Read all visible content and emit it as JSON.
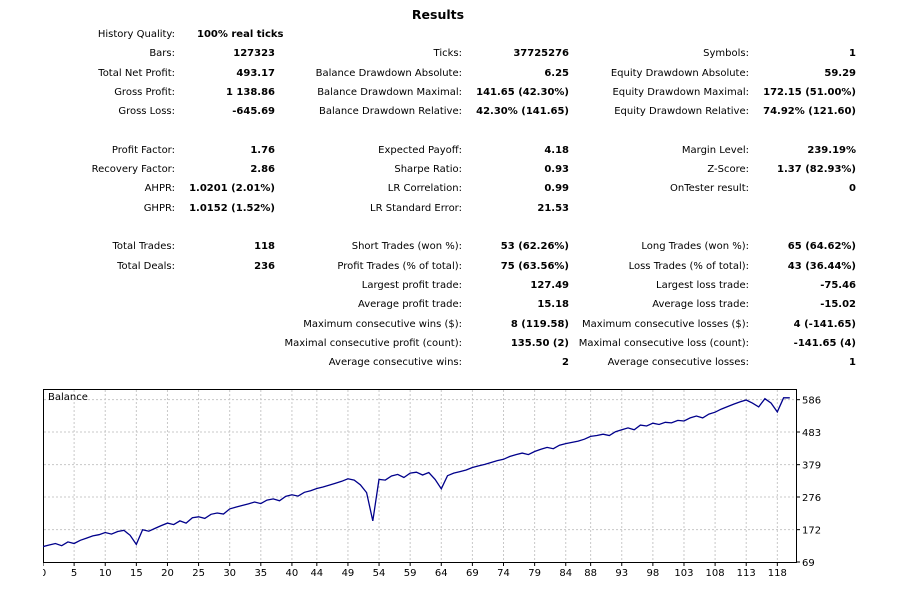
{
  "header": {
    "title": "Results"
  },
  "history_quality": {
    "label": "History Quality:",
    "value": "100% real ticks"
  },
  "rows": [
    {
      "y": 1,
      "c1": {
        "label": "Bars:",
        "value": "127323"
      },
      "c2": {
        "label": "Ticks:",
        "value": "37725276"
      },
      "c3": {
        "label": "Symbols:",
        "value": "1"
      }
    },
    {
      "y": 2,
      "c1": {
        "label": "Total Net Profit:",
        "value": "493.17"
      },
      "c2": {
        "label": "Balance Drawdown Absolute:",
        "value": "6.25"
      },
      "c3": {
        "label": "Equity Drawdown Absolute:",
        "value": "59.29"
      }
    },
    {
      "y": 3,
      "c1": {
        "label": "Gross Profit:",
        "value": "1 138.86"
      },
      "c2": {
        "label": "Balance Drawdown Maximal:",
        "value": "141.65 (42.30%)"
      },
      "c3": {
        "label": "Equity Drawdown Maximal:",
        "value": "172.15 (51.00%)"
      }
    },
    {
      "y": 4,
      "c1": {
        "label": "Gross Loss:",
        "value": "-645.69"
      },
      "c2": {
        "label": "Balance Drawdown Relative:",
        "value": "42.30% (141.65)"
      },
      "c3": {
        "label": "Equity Drawdown Relative:",
        "value": "74.92% (121.60)"
      }
    },
    {
      "y": 6,
      "c1": {
        "label": "Profit Factor:",
        "value": "1.76"
      },
      "c2": {
        "label": "Expected Payoff:",
        "value": "4.18"
      },
      "c3": {
        "label": "Margin Level:",
        "value": "239.19%"
      }
    },
    {
      "y": 7,
      "c1": {
        "label": "Recovery Factor:",
        "value": "2.86"
      },
      "c2": {
        "label": "Sharpe Ratio:",
        "value": "0.93"
      },
      "c3": {
        "label": "Z-Score:",
        "value": "1.37 (82.93%)"
      }
    },
    {
      "y": 8,
      "c1": {
        "label": "AHPR:",
        "value": "1.0201 (2.01%)"
      },
      "c2": {
        "label": "LR Correlation:",
        "value": "0.99"
      },
      "c3": {
        "label": "OnTester result:",
        "value": "0"
      }
    },
    {
      "y": 9,
      "c1": {
        "label": "GHPR:",
        "value": "1.0152 (1.52%)"
      },
      "c2": {
        "label": "LR Standard Error:",
        "value": "21.53"
      },
      "c3": {
        "label": "",
        "value": ""
      }
    },
    {
      "y": 11,
      "c1": {
        "label": "Total Trades:",
        "value": "118"
      },
      "c2": {
        "label": "Short Trades (won %):",
        "value": "53 (62.26%)"
      },
      "c3": {
        "label": "Long Trades (won %):",
        "value": "65 (64.62%)"
      }
    },
    {
      "y": 12,
      "c1": {
        "label": "Total Deals:",
        "value": "236"
      },
      "c2": {
        "label": "Profit Trades (% of total):",
        "value": "75 (63.56%)"
      },
      "c3": {
        "label": "Loss Trades (% of total):",
        "value": "43 (36.44%)"
      }
    },
    {
      "y": 13,
      "c1": {
        "label": "",
        "value": ""
      },
      "c2": {
        "label": "Largest profit trade:",
        "value": "127.49"
      },
      "c3": {
        "label": "Largest loss trade:",
        "value": "-75.46"
      }
    },
    {
      "y": 14,
      "c1": {
        "label": "",
        "value": ""
      },
      "c2": {
        "label": "Average profit trade:",
        "value": "15.18"
      },
      "c3": {
        "label": "Average loss trade:",
        "value": "-15.02"
      }
    },
    {
      "y": 15,
      "c1": {
        "label": "",
        "value": ""
      },
      "c2": {
        "label": "Maximum consecutive wins ($):",
        "value": "8 (119.58)"
      },
      "c3": {
        "label": "Maximum consecutive losses ($):",
        "value": "4 (-141.65)"
      }
    },
    {
      "y": 16,
      "c1": {
        "label": "",
        "value": ""
      },
      "c2": {
        "label": "Maximal consecutive profit (count):",
        "value": "135.50 (2)"
      },
      "c3": {
        "label": "Maximal consecutive loss (count):",
        "value": "-141.65 (4)"
      }
    },
    {
      "y": 17,
      "c1": {
        "label": "",
        "value": ""
      },
      "c2": {
        "label": "Average consecutive wins:",
        "value": "2"
      },
      "c3": {
        "label": "Average consecutive losses:",
        "value": "1"
      }
    }
  ],
  "chart_data": {
    "type": "line",
    "title": "Balance",
    "xlabel": "",
    "ylabel": "",
    "xlim": [
      0,
      121
    ],
    "ylim": [
      69,
      620
    ],
    "x_ticks": [
      0,
      5,
      10,
      15,
      20,
      25,
      30,
      35,
      40,
      44,
      49,
      54,
      59,
      64,
      69,
      74,
      79,
      84,
      88,
      93,
      98,
      103,
      108,
      113,
      118
    ],
    "y_ticks": [
      69,
      172,
      276,
      379,
      483,
      586
    ],
    "grid": true,
    "colors": {
      "line": "#00008b",
      "grid": "#c8c8c8",
      "axis": "#000000"
    },
    "series": [
      {
        "x": [
          0,
          1,
          2,
          3,
          4,
          5,
          6,
          7,
          8,
          9,
          10,
          11,
          12,
          13,
          14,
          15,
          16,
          17,
          18,
          19,
          20,
          21,
          22,
          23,
          24,
          25,
          26,
          27,
          28,
          29,
          30,
          31,
          32,
          33,
          34,
          35,
          36,
          37,
          38,
          39,
          40,
          41,
          42,
          43,
          44,
          45,
          46,
          47,
          48,
          49,
          50,
          51,
          52,
          53,
          54,
          55,
          56,
          57,
          58,
          59,
          60,
          61,
          62,
          63,
          64,
          65,
          66,
          67,
          68,
          69,
          70,
          71,
          72,
          73,
          74,
          75,
          76,
          77,
          78,
          79,
          80,
          81,
          82,
          83,
          84,
          85,
          86,
          87,
          88,
          89,
          90,
          91,
          92,
          93,
          94,
          95,
          96,
          97,
          98,
          99,
          100,
          101,
          102,
          103,
          104,
          105,
          106,
          107,
          108,
          109,
          110,
          111,
          112,
          113,
          114,
          115,
          116,
          117,
          118,
          119,
          120
        ],
        "values": [
          118,
          123,
          128,
          121,
          133,
          128,
          138,
          145,
          152,
          156,
          163,
          158,
          166,
          170,
          154,
          125,
          172,
          167,
          176,
          185,
          193,
          188,
          200,
          193,
          210,
          213,
          208,
          221,
          225,
          222,
          238,
          244,
          249,
          254,
          260,
          255,
          266,
          270,
          264,
          278,
          283,
          279,
          291,
          296,
          303,
          308,
          314,
          320,
          326,
          334,
          330,
          315,
          290,
          200,
          332,
          330,
          343,
          348,
          338,
          352,
          355,
          346,
          354,
          332,
          302,
          344,
          352,
          357,
          362,
          370,
          375,
          380,
          386,
          392,
          396,
          405,
          411,
          416,
          411,
          421,
          428,
          434,
          430,
          441,
          446,
          450,
          454,
          460,
          469,
          472,
          476,
          472,
          484,
          490,
          496,
          490,
          505,
          502,
          511,
          507,
          514,
          512,
          520,
          518,
          528,
          534,
          528,
          540,
          546,
          556,
          564,
          572,
          579,
          585,
          575,
          563,
          589,
          575,
          547,
          592,
          592
        ]
      }
    ]
  }
}
